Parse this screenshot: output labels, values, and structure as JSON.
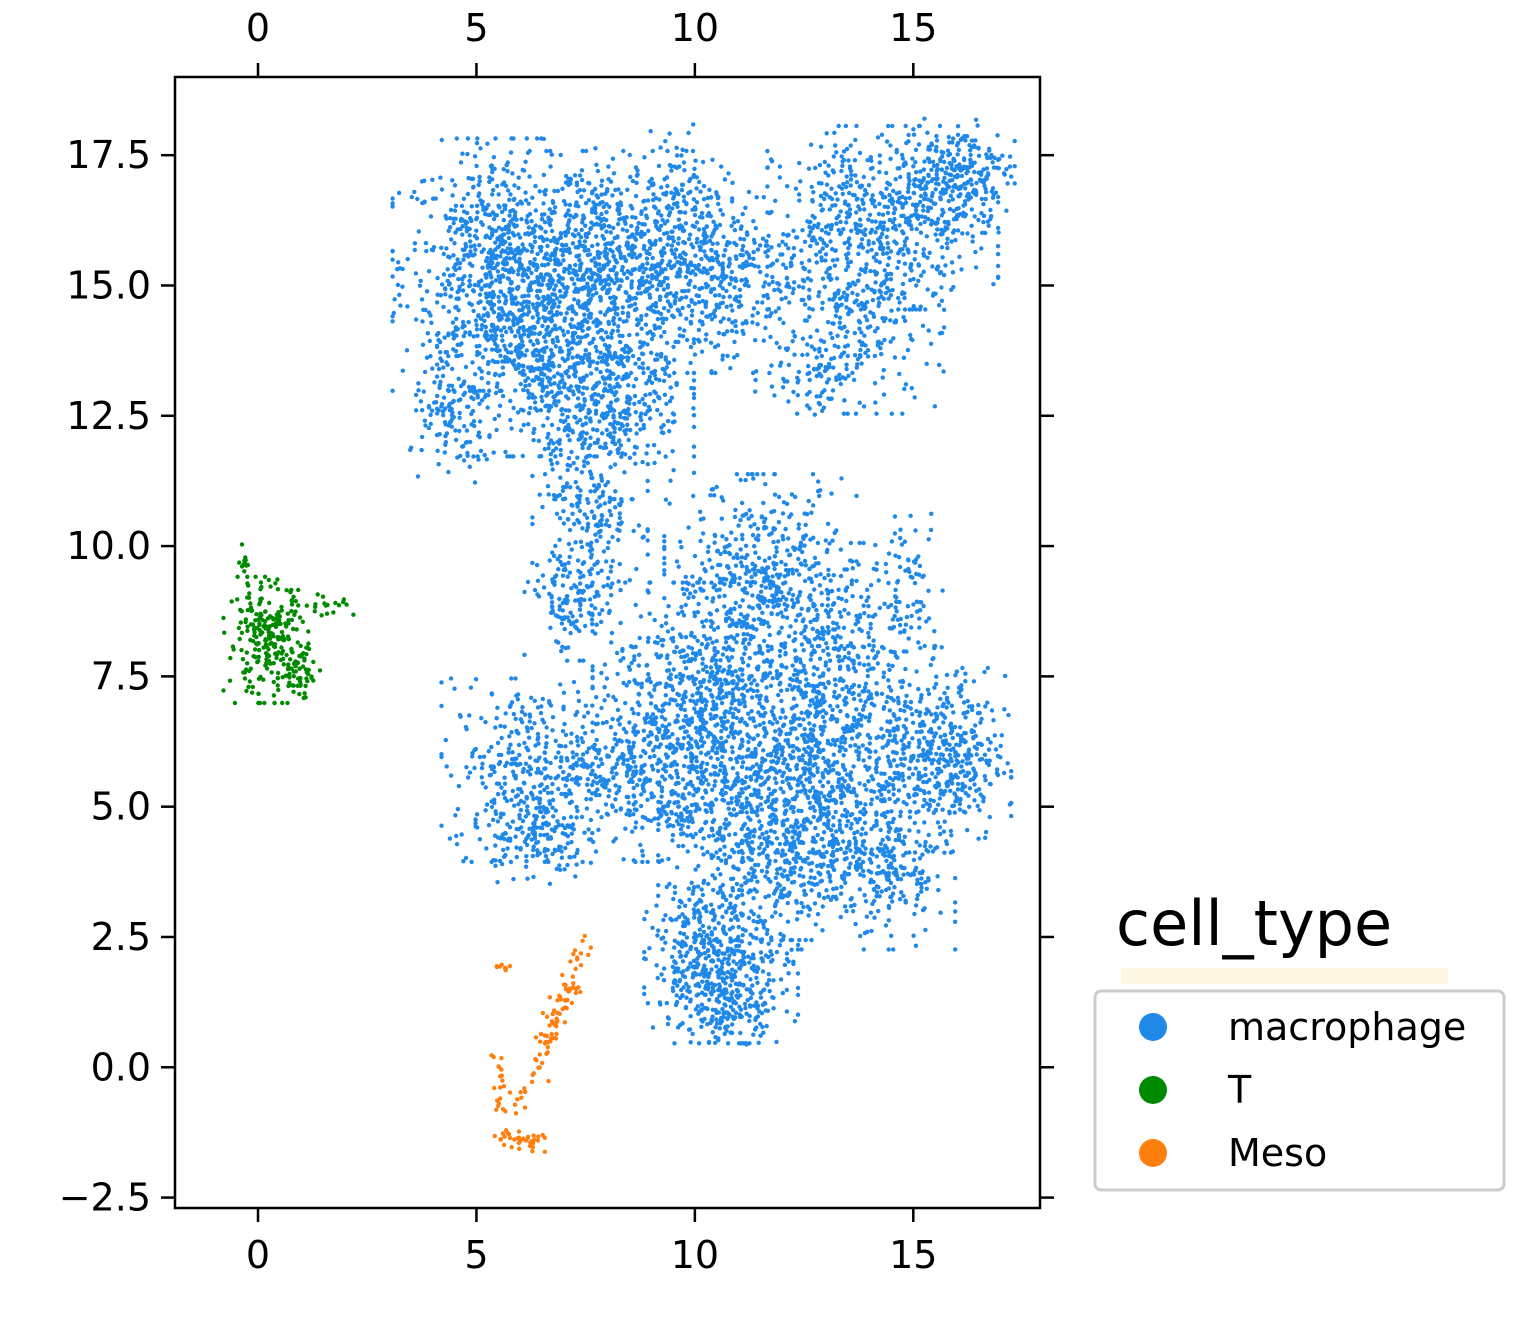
{
  "chart_data": {
    "type": "scatter",
    "title": "",
    "xlabel": "",
    "ylabel": "",
    "xlim": [
      -1.9,
      17.9
    ],
    "ylim": [
      -2.7,
      19.0
    ],
    "x_ticks": [
      "0",
      "5",
      "10",
      "15"
    ],
    "y_ticks": [
      "−2.5",
      "0.0",
      "2.5",
      "5.0",
      "7.5",
      "10.0",
      "12.5",
      "15.0",
      "17.5"
    ],
    "grid": false,
    "legend": {
      "title": "cell_type",
      "placement": "right",
      "entries": [
        {
          "name": "macrophage",
          "color": "#1f88e8"
        },
        {
          "name": "T",
          "color": "#008a00"
        },
        {
          "name": "Meso",
          "color": "#ff7f0e"
        }
      ]
    },
    "series": [
      {
        "name": "macrophage",
        "color": "#1f88e8",
        "clusters": [
          {
            "cx": 5.5,
            "cy": 15.4,
            "sx": 1.1,
            "sy": 1.1,
            "n": 700
          },
          {
            "cx": 6.3,
            "cy": 13.7,
            "sx": 1.0,
            "sy": 0.9,
            "n": 450
          },
          {
            "cx": 8.0,
            "cy": 15.6,
            "sx": 1.2,
            "sy": 0.9,
            "n": 650
          },
          {
            "cx": 10.2,
            "cy": 15.3,
            "sx": 1.1,
            "sy": 0.9,
            "n": 500
          },
          {
            "cx": 8.0,
            "cy": 13.1,
            "sx": 0.9,
            "sy": 1.0,
            "n": 500
          },
          {
            "cx": 4.5,
            "cy": 12.4,
            "sx": 0.5,
            "sy": 0.6,
            "n": 120
          },
          {
            "cx": 7.6,
            "cy": 10.7,
            "sx": 0.6,
            "sy": 0.9,
            "n": 220
          },
          {
            "cx": 7.2,
            "cy": 8.9,
            "sx": 0.5,
            "sy": 0.5,
            "n": 120
          },
          {
            "cx": 9.6,
            "cy": 17.1,
            "sx": 0.35,
            "sy": 0.45,
            "n": 40
          },
          {
            "cx": 14.3,
            "cy": 16.3,
            "sx": 1.2,
            "sy": 0.8,
            "n": 550
          },
          {
            "cx": 16.0,
            "cy": 17.1,
            "sx": 0.6,
            "sy": 0.5,
            "n": 250
          },
          {
            "cx": 13.8,
            "cy": 14.3,
            "sx": 0.9,
            "sy": 0.8,
            "n": 250
          },
          {
            "cx": 12.7,
            "cy": 13.4,
            "sx": 0.6,
            "sy": 0.4,
            "n": 80
          },
          {
            "cx": 11.5,
            "cy": 9.4,
            "sx": 1.0,
            "sy": 0.9,
            "n": 450
          },
          {
            "cx": 13.5,
            "cy": 8.3,
            "sx": 0.9,
            "sy": 0.8,
            "n": 250
          },
          {
            "cx": 14.9,
            "cy": 9.3,
            "sx": 0.35,
            "sy": 0.6,
            "n": 60
          },
          {
            "cx": 10.3,
            "cy": 7.1,
            "sx": 1.2,
            "sy": 1.0,
            "n": 700
          },
          {
            "cx": 13.0,
            "cy": 6.1,
            "sx": 1.3,
            "sy": 0.9,
            "n": 700
          },
          {
            "cx": 15.7,
            "cy": 5.9,
            "sx": 0.7,
            "sy": 0.8,
            "n": 400
          },
          {
            "cx": 6.4,
            "cy": 5.7,
            "sx": 1.0,
            "sy": 0.8,
            "n": 400
          },
          {
            "cx": 9.1,
            "cy": 5.7,
            "sx": 0.9,
            "sy": 0.8,
            "n": 350
          },
          {
            "cx": 6.3,
            "cy": 4.4,
            "sx": 0.6,
            "sy": 0.4,
            "n": 130
          },
          {
            "cx": 11.8,
            "cy": 4.2,
            "sx": 1.2,
            "sy": 0.8,
            "n": 600
          },
          {
            "cx": 14.2,
            "cy": 3.8,
            "sx": 0.8,
            "sy": 0.7,
            "n": 250
          },
          {
            "cx": 10.6,
            "cy": 2.0,
            "sx": 0.8,
            "sy": 0.7,
            "n": 500
          },
          {
            "cx": 10.7,
            "cy": 1.2,
            "sx": 0.5,
            "sy": 0.35,
            "n": 100
          }
        ]
      },
      {
        "name": "T",
        "color": "#008a00",
        "clusters": [
          {
            "cx": 0.2,
            "cy": 8.2,
            "sx": 0.45,
            "sy": 0.55,
            "n": 240
          },
          {
            "cx": 1.0,
            "cy": 7.6,
            "sx": 0.25,
            "sy": 0.25,
            "n": 50
          },
          {
            "cx": 1.5,
            "cy": 8.9,
            "sx": 0.35,
            "sy": 0.12,
            "n": 18
          },
          {
            "cx": -0.3,
            "cy": 9.7,
            "sx": 0.06,
            "sy": 0.15,
            "n": 12
          }
        ]
      },
      {
        "name": "Meso",
        "color": "#ff7f0e",
        "segments": [
          {
            "x1": 6.0,
            "y1": -0.8,
            "x2": 7.5,
            "y2": 2.3,
            "n": 90,
            "spread": 0.13
          },
          {
            "x1": 5.5,
            "y1": -1.3,
            "x2": 6.5,
            "y2": -1.5,
            "n": 35,
            "spread": 0.1
          },
          {
            "x1": 5.5,
            "y1": 0.1,
            "x2": 5.6,
            "y2": -0.9,
            "n": 20,
            "spread": 0.08
          },
          {
            "x1": 5.5,
            "y1": 1.9,
            "x2": 5.8,
            "y2": 1.95,
            "n": 8,
            "spread": 0.04
          }
        ]
      }
    ]
  }
}
